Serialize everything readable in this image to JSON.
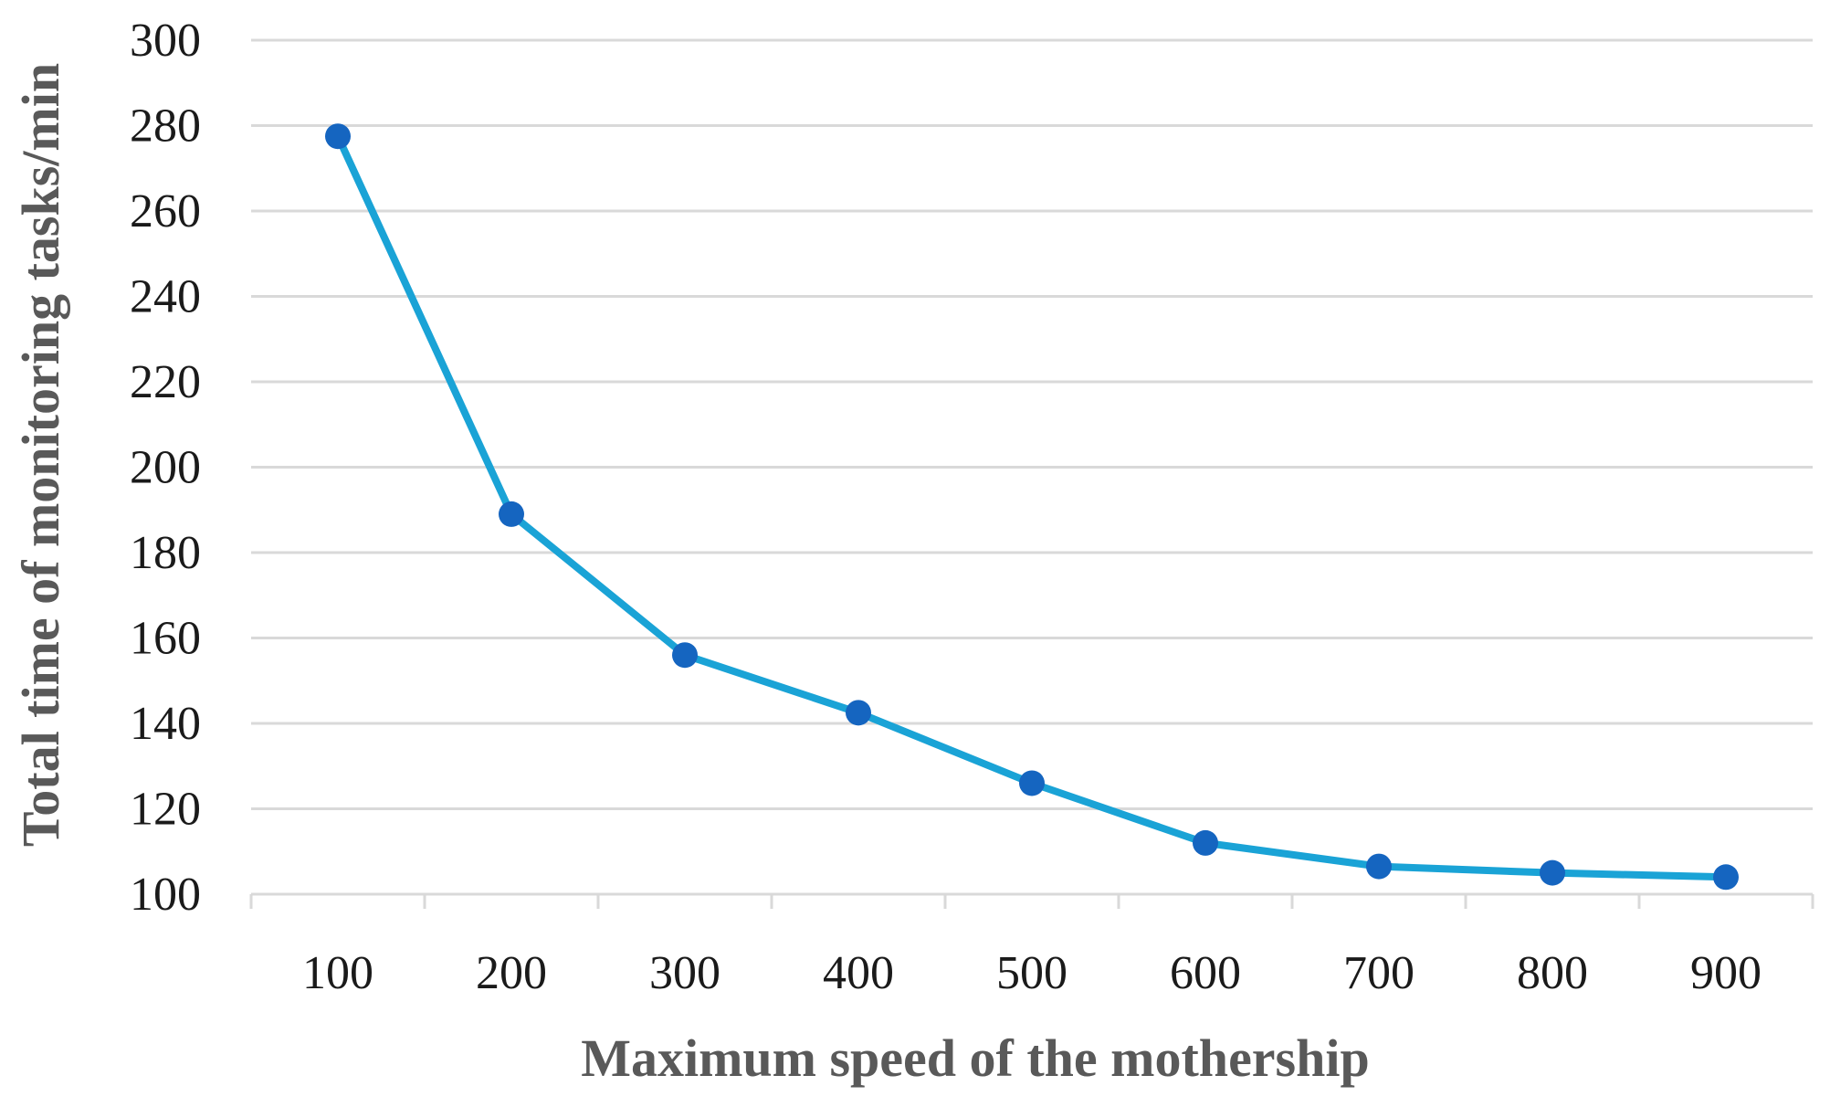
{
  "chart_data": {
    "type": "line",
    "title": "",
    "xlabel": "Maximum speed of the mothership",
    "ylabel": "Total time of monitoring tasks/min",
    "categories": [
      "100",
      "200",
      "300",
      "400",
      "500",
      "600",
      "700",
      "800",
      "900"
    ],
    "series": [
      {
        "name": "Total time",
        "values": [
          277.5,
          189,
          156,
          142.5,
          126,
          112,
          106.5,
          105,
          104
        ],
        "line_color": "#1aa3d6",
        "marker_color": "#1565c0"
      }
    ],
    "ylim": [
      100,
      300
    ],
    "yticks": [
      100,
      120,
      140,
      160,
      180,
      200,
      220,
      240,
      260,
      280,
      300
    ],
    "grid": true,
    "legend": "none"
  }
}
